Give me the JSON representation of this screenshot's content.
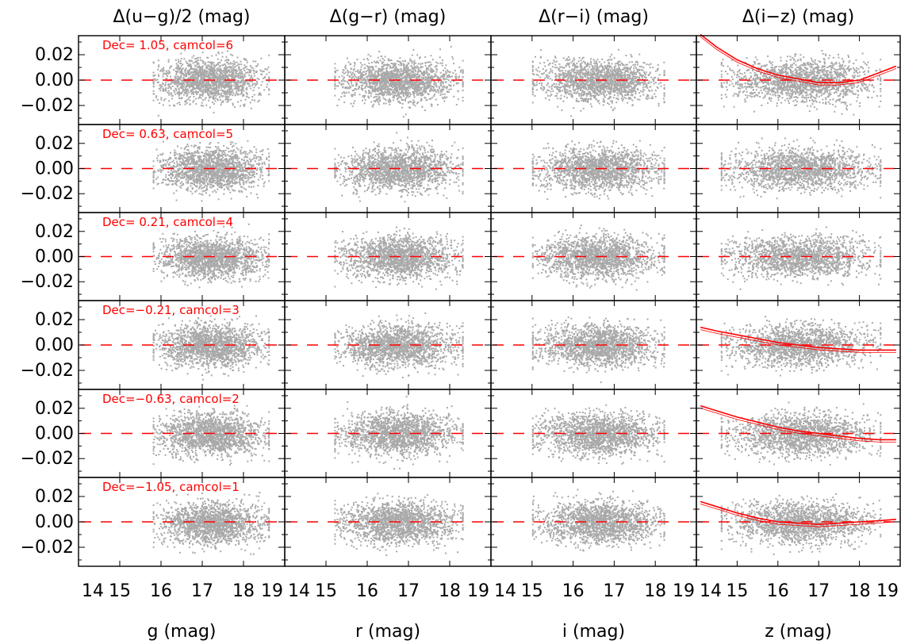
{
  "chart_data": {
    "type": "scatter",
    "layout": "grid 6 rows x 4 columns",
    "column_titles": [
      "Δ(u−g)/2 (mag)",
      "Δ(g−r) (mag)",
      "Δ(r−i) (mag)",
      "Δ(i−z) (mag)"
    ],
    "xlabels": [
      "g (mag)",
      "r (mag)",
      "i (mag)",
      "z (mag)"
    ],
    "xlim": [
      14,
      19
    ],
    "x_ticks": [
      "14",
      "15",
      "16",
      "17",
      "18",
      "19"
    ],
    "ylim": [
      -0.035,
      0.035
    ],
    "y_ticks": [
      "0.02",
      "0.00",
      "−0.02"
    ],
    "y_tick_values": [
      0.02,
      0.0,
      -0.02
    ],
    "point_color": "#a9a9a9",
    "reference_line": {
      "y": 0.0,
      "style": "dashed",
      "color": "#ff0000"
    },
    "fit_color": "#ff0000",
    "rows": [
      {
        "label": "Dec= 1.05, camcol=6"
      },
      {
        "label": "Dec= 0.63, camcol=5"
      },
      {
        "label": "Dec= 0.21, camcol=4"
      },
      {
        "label": "Dec=−0.21, camcol=3"
      },
      {
        "label": "Dec=−0.63, camcol=2"
      },
      {
        "label": "Dec=−1.05, camcol=1"
      }
    ],
    "columns": [
      {
        "x_range": [
          15.8,
          18.6
        ]
      },
      {
        "x_range": [
          15.2,
          18.3
        ]
      },
      {
        "x_range": [
          15.0,
          18.2
        ]
      },
      {
        "x_range": [
          14.6,
          18.5
        ]
      }
    ],
    "fits": [
      {
        "row": 0,
        "col": 3,
        "x": [
          14.1,
          14.5,
          15.0,
          15.5,
          16.0,
          16.5,
          17.0,
          17.5,
          18.0,
          18.5,
          18.9
        ],
        "y": [
          0.036,
          0.026,
          0.016,
          0.009,
          0.004,
          0.001,
          -0.002,
          -0.002,
          0.0,
          0.006,
          0.011
        ]
      },
      {
        "row": 3,
        "col": 3,
        "x": [
          14.1,
          14.5,
          15.0,
          15.5,
          16.0,
          16.5,
          17.0,
          17.5,
          18.0,
          18.5,
          18.9
        ],
        "y": [
          0.014,
          0.011,
          0.008,
          0.005,
          0.002,
          0.0,
          -0.002,
          -0.003,
          -0.004,
          -0.004,
          -0.004
        ]
      },
      {
        "row": 4,
        "col": 3,
        "x": [
          14.1,
          14.5,
          15.0,
          15.5,
          16.0,
          16.5,
          17.0,
          17.5,
          18.0,
          18.5,
          18.9
        ],
        "y": [
          0.022,
          0.018,
          0.013,
          0.009,
          0.005,
          0.002,
          0.0,
          -0.002,
          -0.004,
          -0.005,
          -0.005
        ]
      },
      {
        "row": 5,
        "col": 3,
        "x": [
          14.1,
          14.5,
          15.0,
          15.5,
          16.0,
          16.5,
          17.0,
          17.5,
          18.0,
          18.5,
          18.9
        ],
        "y": [
          0.016,
          0.012,
          0.007,
          0.003,
          0.0,
          -0.001,
          -0.002,
          -0.001,
          0.0,
          0.001,
          0.002
        ]
      }
    ]
  }
}
